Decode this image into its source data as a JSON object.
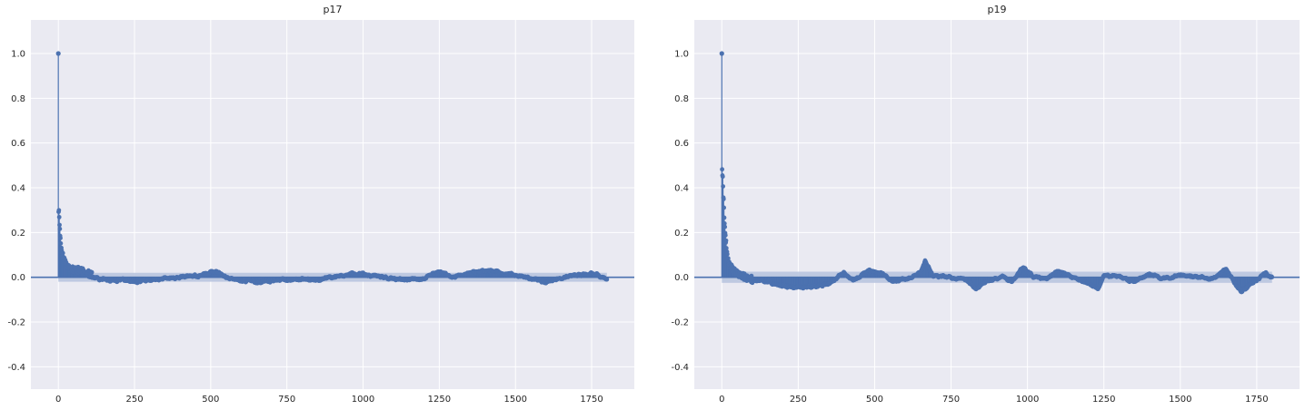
{
  "chart_data": [
    {
      "type": "scatter",
      "subtype": "acf-stem",
      "title": "p17",
      "xlabel": "",
      "ylabel": "",
      "xlim": [
        -90,
        1890
      ],
      "ylim": [
        -0.5,
        1.15
      ],
      "xticks": [
        0,
        250,
        500,
        750,
        1000,
        1250,
        1500,
        1750
      ],
      "yticks": [
        -0.4,
        -0.2,
        0.0,
        0.2,
        0.4,
        0.6,
        0.8,
        1.0
      ],
      "grid": true,
      "color": "#4c72b0",
      "band_color": "#b9c5df",
      "axes_bg": "#eaeaf2",
      "max_lag": 1800,
      "confidence_band": 0.02,
      "lag0": 1.0,
      "initial_lags": [
        [
          1,
          0.3
        ],
        [
          2,
          0.29
        ],
        [
          3,
          0.27
        ],
        [
          4,
          0.24
        ],
        [
          5,
          0.21
        ],
        [
          6,
          0.19
        ],
        [
          7,
          0.17
        ],
        [
          8,
          0.16
        ],
        [
          9,
          0.14
        ],
        [
          10,
          0.13
        ],
        [
          12,
          0.11
        ],
        [
          14,
          0.1
        ],
        [
          17,
          0.09
        ],
        [
          20,
          0.08
        ],
        [
          25,
          0.06
        ],
        [
          30,
          0.05
        ],
        [
          40,
          0.04
        ],
        [
          55,
          0.035
        ],
        [
          70,
          0.03
        ],
        [
          90,
          0.02
        ],
        [
          110,
          0.01
        ]
      ],
      "trend": [
        [
          110,
          0.0
        ],
        [
          160,
          -0.01
        ],
        [
          250,
          -0.02
        ],
        [
          330,
          -0.01
        ],
        [
          400,
          0.0
        ],
        [
          470,
          0.01
        ],
        [
          520,
          0.03
        ],
        [
          560,
          -0.01
        ],
        [
          650,
          -0.02
        ],
        [
          750,
          -0.01
        ],
        [
          850,
          -0.01
        ],
        [
          950,
          0.01
        ],
        [
          1000,
          0.015
        ],
        [
          1100,
          -0.01
        ],
        [
          1200,
          -0.005
        ],
        [
          1250,
          0.025
        ],
        [
          1300,
          0.0
        ],
        [
          1350,
          0.02
        ],
        [
          1420,
          0.03
        ],
        [
          1500,
          0.01
        ],
        [
          1600,
          -0.02
        ],
        [
          1700,
          0.01
        ],
        [
          1760,
          0.015
        ],
        [
          1800,
          -0.01
        ]
      ]
    },
    {
      "type": "scatter",
      "subtype": "acf-stem",
      "title": "p19",
      "xlabel": "",
      "ylabel": "",
      "xlim": [
        -90,
        1890
      ],
      "ylim": [
        -0.5,
        1.15
      ],
      "xticks": [
        0,
        250,
        500,
        750,
        1000,
        1250,
        1500,
        1750
      ],
      "yticks": [
        -0.4,
        -0.2,
        0.0,
        0.2,
        0.4,
        0.6,
        0.8,
        1.0
      ],
      "grid": true,
      "color": "#4c72b0",
      "band_color": "#b9c5df",
      "axes_bg": "#eaeaf2",
      "max_lag": 1800,
      "confidence_band": 0.025,
      "lag0": 1.0,
      "initial_lags": [
        [
          1,
          0.49
        ],
        [
          2,
          0.47
        ],
        [
          3,
          0.44
        ],
        [
          4,
          0.41
        ],
        [
          5,
          0.37
        ],
        [
          6,
          0.34
        ],
        [
          7,
          0.31
        ],
        [
          8,
          0.28
        ],
        [
          9,
          0.25
        ],
        [
          10,
          0.22
        ],
        [
          12,
          0.18
        ],
        [
          14,
          0.15
        ],
        [
          16,
          0.12
        ],
        [
          19,
          0.09
        ],
        [
          23,
          0.07
        ],
        [
          28,
          0.05
        ],
        [
          35,
          0.035
        ],
        [
          45,
          0.02
        ],
        [
          60,
          0.01
        ],
        [
          80,
          0.0
        ],
        [
          100,
          -0.01
        ]
      ],
      "trend": [
        [
          100,
          -0.01
        ],
        [
          150,
          -0.02
        ],
        [
          200,
          -0.04
        ],
        [
          250,
          -0.045
        ],
        [
          300,
          -0.04
        ],
        [
          350,
          -0.03
        ],
        [
          400,
          0.02
        ],
        [
          430,
          -0.01
        ],
        [
          480,
          0.03
        ],
        [
          520,
          0.02
        ],
        [
          560,
          -0.02
        ],
        [
          620,
          0.0
        ],
        [
          650,
          0.02
        ],
        [
          665,
          0.075
        ],
        [
          690,
          0.01
        ],
        [
          750,
          -0.005
        ],
        [
          800,
          -0.01
        ],
        [
          830,
          -0.05
        ],
        [
          860,
          -0.02
        ],
        [
          920,
          0.0
        ],
        [
          950,
          -0.02
        ],
        [
          985,
          0.045
        ],
        [
          1020,
          0.0
        ],
        [
          1060,
          -0.01
        ],
        [
          1100,
          0.025
        ],
        [
          1150,
          0.0
        ],
        [
          1200,
          -0.03
        ],
        [
          1230,
          -0.05
        ],
        [
          1250,
          0.01
        ],
        [
          1300,
          0.0
        ],
        [
          1350,
          -0.02
        ],
        [
          1400,
          0.01
        ],
        [
          1450,
          -0.01
        ],
        [
          1500,
          0.01
        ],
        [
          1550,
          0.005
        ],
        [
          1600,
          -0.01
        ],
        [
          1650,
          0.04
        ],
        [
          1680,
          -0.03
        ],
        [
          1700,
          -0.06
        ],
        [
          1740,
          -0.02
        ],
        [
          1780,
          0.02
        ],
        [
          1800,
          0.0
        ]
      ]
    }
  ]
}
